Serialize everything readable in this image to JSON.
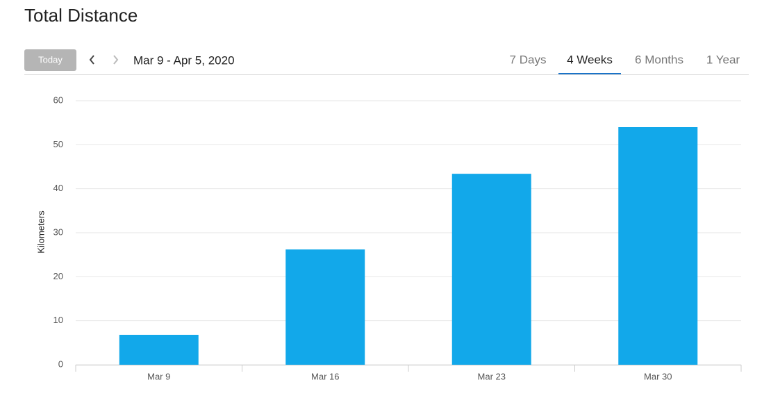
{
  "header": {
    "title": "Total Distance"
  },
  "toolbar": {
    "today": "Today",
    "date_range": "Mar 9 - Apr 5, 2020",
    "tabs": [
      "7 Days",
      "4 Weeks",
      "6 Months",
      "1 Year"
    ],
    "active_tab": 1
  },
  "chart_data": {
    "type": "bar",
    "y_label": "Kilometers",
    "categories": [
      "Mar 9",
      "Mar 16",
      "Mar 23",
      "Mar 30"
    ],
    "values": [
      6.8,
      26.2,
      43.4,
      54.0
    ],
    "color": "#12a8ea",
    "ylim": [
      0,
      60
    ],
    "yticks": [
      0,
      10,
      20,
      30,
      40,
      50,
      60
    ],
    "grid": true
  }
}
